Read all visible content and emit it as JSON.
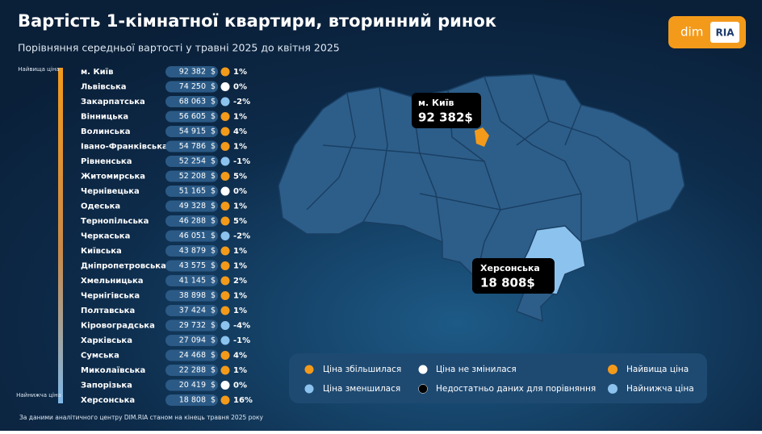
{
  "header": {
    "title": "Вартість 1-кімнатної квартири, вторинний ринок",
    "subtitle": "Порівняння середньої вартості у травні 2025 до квітня 2025",
    "logo_left": "dim",
    "logo_right": "RIA"
  },
  "scale": {
    "top": "Найвища ціна",
    "bottom": "Найнижча ціна"
  },
  "currency": "$",
  "rows": [
    {
      "name": "м. Київ",
      "price": "92 382",
      "trend": "up",
      "change": "1%"
    },
    {
      "name": "Львівська",
      "price": "74 250",
      "trend": "same",
      "change": "0%"
    },
    {
      "name": "Закарпатська",
      "price": "68 063",
      "trend": "down",
      "change": "-2%"
    },
    {
      "name": "Вінницька",
      "price": "56 605",
      "trend": "up",
      "change": "1%"
    },
    {
      "name": "Волинська",
      "price": "54 915",
      "trend": "up",
      "change": "4%"
    },
    {
      "name": "Івано-Франківська",
      "price": "54 786",
      "trend": "up",
      "change": "1%"
    },
    {
      "name": "Рівненська",
      "price": "52 254",
      "trend": "down",
      "change": "-1%"
    },
    {
      "name": "Житомирська",
      "price": "52 208",
      "trend": "up",
      "change": "5%"
    },
    {
      "name": "Чернівецька",
      "price": "51 165",
      "trend": "same",
      "change": "0%"
    },
    {
      "name": "Одеська",
      "price": "49 328",
      "trend": "up",
      "change": "1%"
    },
    {
      "name": "Тернопільська",
      "price": "46 288",
      "trend": "up",
      "change": "5%"
    },
    {
      "name": "Черкаська",
      "price": "46 051",
      "trend": "down",
      "change": "-2%"
    },
    {
      "name": "Київська",
      "price": "43 879",
      "trend": "up",
      "change": "1%"
    },
    {
      "name": "Дніпропетровська",
      "price": "43 575",
      "trend": "up",
      "change": "1%"
    },
    {
      "name": "Хмельницька",
      "price": "41 145",
      "trend": "up",
      "change": "2%"
    },
    {
      "name": "Чернігівська",
      "price": "38 898",
      "trend": "up",
      "change": "1%"
    },
    {
      "name": "Полтавська",
      "price": "37 424",
      "trend": "up",
      "change": "1%"
    },
    {
      "name": "Кіровоградська",
      "price": "29 732",
      "trend": "down",
      "change": "-4%"
    },
    {
      "name": "Харківська",
      "price": "27 094",
      "trend": "down",
      "change": "-1%"
    },
    {
      "name": "Сумська",
      "price": "24 468",
      "trend": "up",
      "change": "4%"
    },
    {
      "name": "Миколаївська",
      "price": "22 288",
      "trend": "up",
      "change": "1%"
    },
    {
      "name": "Запорізька",
      "price": "20 419",
      "trend": "same",
      "change": "0%"
    },
    {
      "name": "Херсонська",
      "price": "18 808",
      "trend": "up",
      "change": "16%"
    }
  ],
  "callouts": [
    {
      "name": "м. Київ",
      "price": "92 382$"
    },
    {
      "name": "Херсонська",
      "price": "18 808$"
    }
  ],
  "legend": {
    "up": "Ціна збільшилася",
    "same": "Ціна не змінилася",
    "highest": "Найвища ціна",
    "down": "Ціна зменшилася",
    "nodata": "Недостатньо даних для порівняння",
    "lowest": "Найнижча ціна"
  },
  "footnote": "За даними аналітичного центру DIM.RIA станом на кінець травня 2025 року"
}
